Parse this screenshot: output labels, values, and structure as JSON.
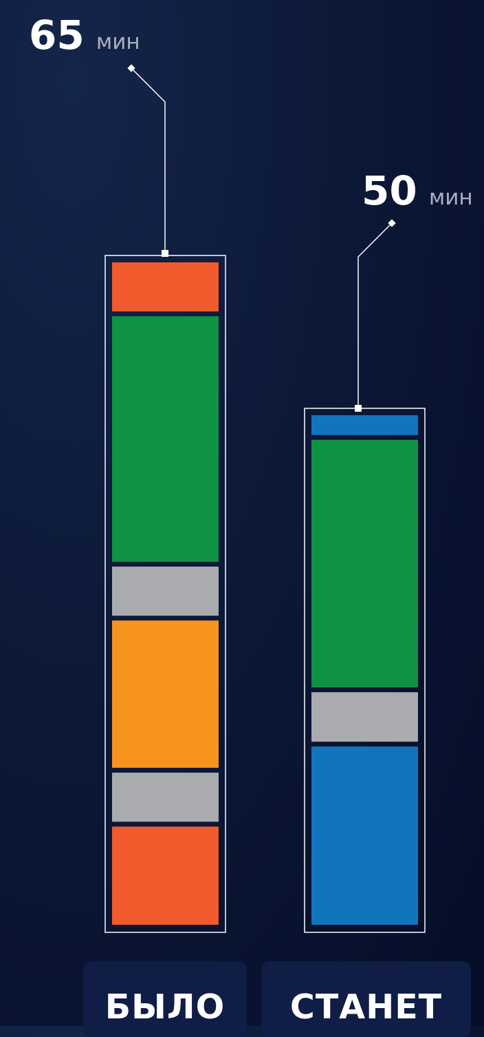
{
  "chart_data": {
    "type": "bar",
    "stacked": true,
    "categories": [
      "БЫЛО",
      "СТАНЕТ"
    ],
    "totals": [
      {
        "value": "65",
        "unit": "мин"
      },
      {
        "value": "50",
        "unit": "мин"
      }
    ],
    "bars": [
      {
        "category": "БЫЛО",
        "total": 65,
        "segments": [
          {
            "value": 5,
            "color": "#f15a2c"
          },
          {
            "value": 25,
            "color": "#0e9345"
          },
          {
            "value": 5,
            "color": "#a9abaf"
          },
          {
            "value": 15,
            "color": "#f7941e"
          },
          {
            "value": 5,
            "color": "#a9abaf"
          },
          {
            "value": 10,
            "color": "#f15a2c"
          }
        ]
      },
      {
        "category": "СТАНЕТ",
        "total": 50,
        "segments": [
          {
            "value": 2,
            "color": "#1175bd"
          },
          {
            "value": 25,
            "color": "#0e9345"
          },
          {
            "value": 5,
            "color": "#a9abaf"
          },
          {
            "value": 18,
            "color": "#1175bd"
          }
        ]
      }
    ],
    "colors": {
      "red": "#f15a2c",
      "green": "#0e9345",
      "gray": "#a9abaf",
      "orange": "#f7941e",
      "blue": "#1175bd",
      "label_bg": "#0f1d47",
      "outline": "#ffffff"
    }
  }
}
